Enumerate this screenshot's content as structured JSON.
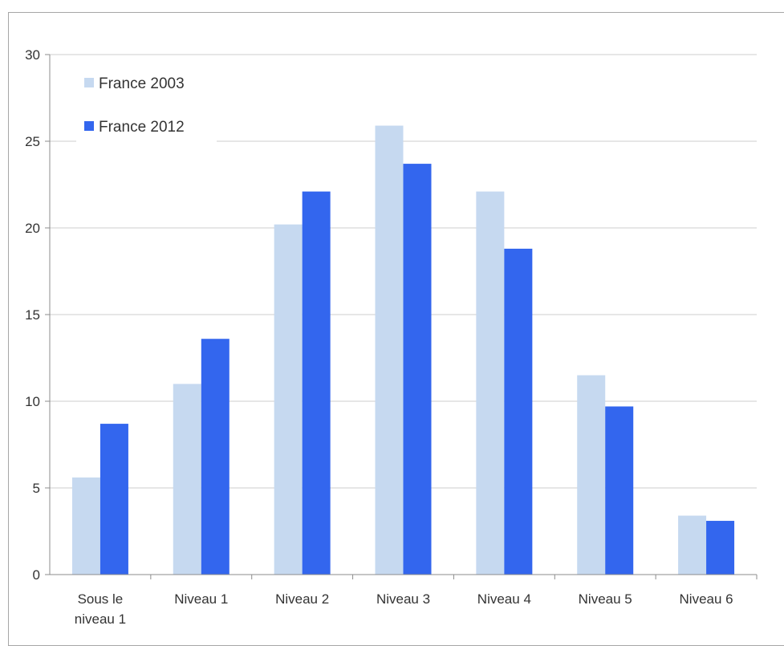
{
  "chart_data": {
    "type": "bar",
    "categories": [
      [
        "Sous le",
        "niveau 1"
      ],
      [
        "Niveau 1"
      ],
      [
        "Niveau 2"
      ],
      [
        "Niveau 3"
      ],
      [
        "Niveau 4"
      ],
      [
        "Niveau 5"
      ],
      [
        "Niveau 6"
      ]
    ],
    "series": [
      {
        "name": "France 2003",
        "color": "#c6d9f0",
        "values": [
          5.6,
          11.0,
          20.2,
          25.9,
          22.1,
          11.5,
          3.4
        ]
      },
      {
        "name": "France 2012",
        "color": "#3366ee",
        "values": [
          8.7,
          13.6,
          22.1,
          23.7,
          18.8,
          9.7,
          3.1
        ]
      }
    ],
    "ylim": [
      0,
      30
    ],
    "yticks": [
      "0",
      "5",
      "10",
      "15",
      "20",
      "25",
      "30"
    ],
    "grid": true,
    "legend_position": "top-left"
  }
}
